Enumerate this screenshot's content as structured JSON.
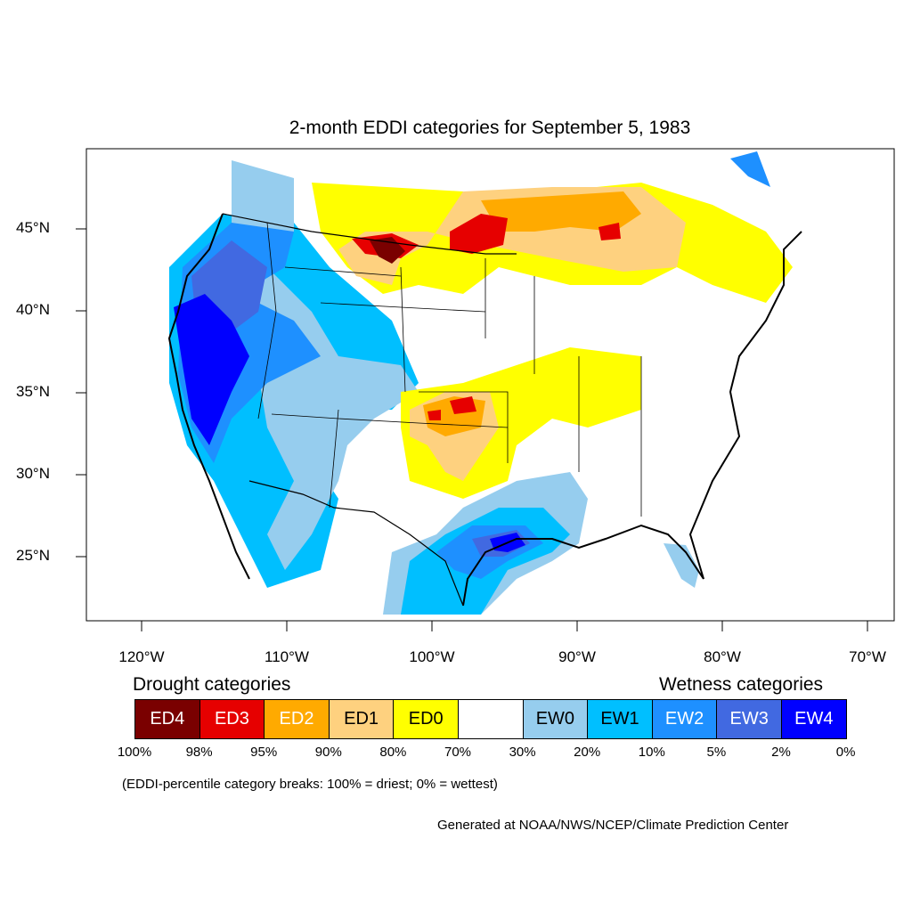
{
  "title": "2-month EDDI categories for September 5, 1983",
  "axes": {
    "lat_labels": [
      "45°N",
      "40°N",
      "35°N",
      "30°N",
      "25°N"
    ],
    "lon_labels": [
      "120°W",
      "110°W",
      "100°W",
      "90°W",
      "80°W",
      "70°W"
    ]
  },
  "legend": {
    "drought_heading": "Drought categories",
    "wetness_heading": "Wetness categories",
    "categories": [
      {
        "label": "ED4",
        "color": "#7a0000",
        "text_color": "#ffffff"
      },
      {
        "label": "ED3",
        "color": "#e60000",
        "text_color": "#ffffff"
      },
      {
        "label": "ED2",
        "color": "#ffaa00",
        "text_color": "#ffffff"
      },
      {
        "label": "ED1",
        "color": "#fed17f",
        "text_color": "#000000"
      },
      {
        "label": "ED0",
        "color": "#ffff00",
        "text_color": "#000000"
      },
      {
        "label": "",
        "color": "#ffffff",
        "text_color": "#000000"
      },
      {
        "label": "EW0",
        "color": "#96cdee",
        "text_color": "#000000"
      },
      {
        "label": "EW1",
        "color": "#00bfff",
        "text_color": "#000000"
      },
      {
        "label": "EW2",
        "color": "#1e90ff",
        "text_color": "#ffffff"
      },
      {
        "label": "EW3",
        "color": "#4169e1",
        "text_color": "#ffffff"
      },
      {
        "label": "EW4",
        "color": "#0000ff",
        "text_color": "#ffffff"
      }
    ],
    "percentiles": [
      "100%",
      "98%",
      "95%",
      "90%",
      "80%",
      "70%",
      "30%",
      "20%",
      "10%",
      "5%",
      "2%",
      "0%"
    ]
  },
  "note": "(EDDI-percentile category breaks: 100% = driest; 0% = wettest)",
  "credit": "Generated at NOAA/NWS/NCEP/Climate Prediction Center"
}
